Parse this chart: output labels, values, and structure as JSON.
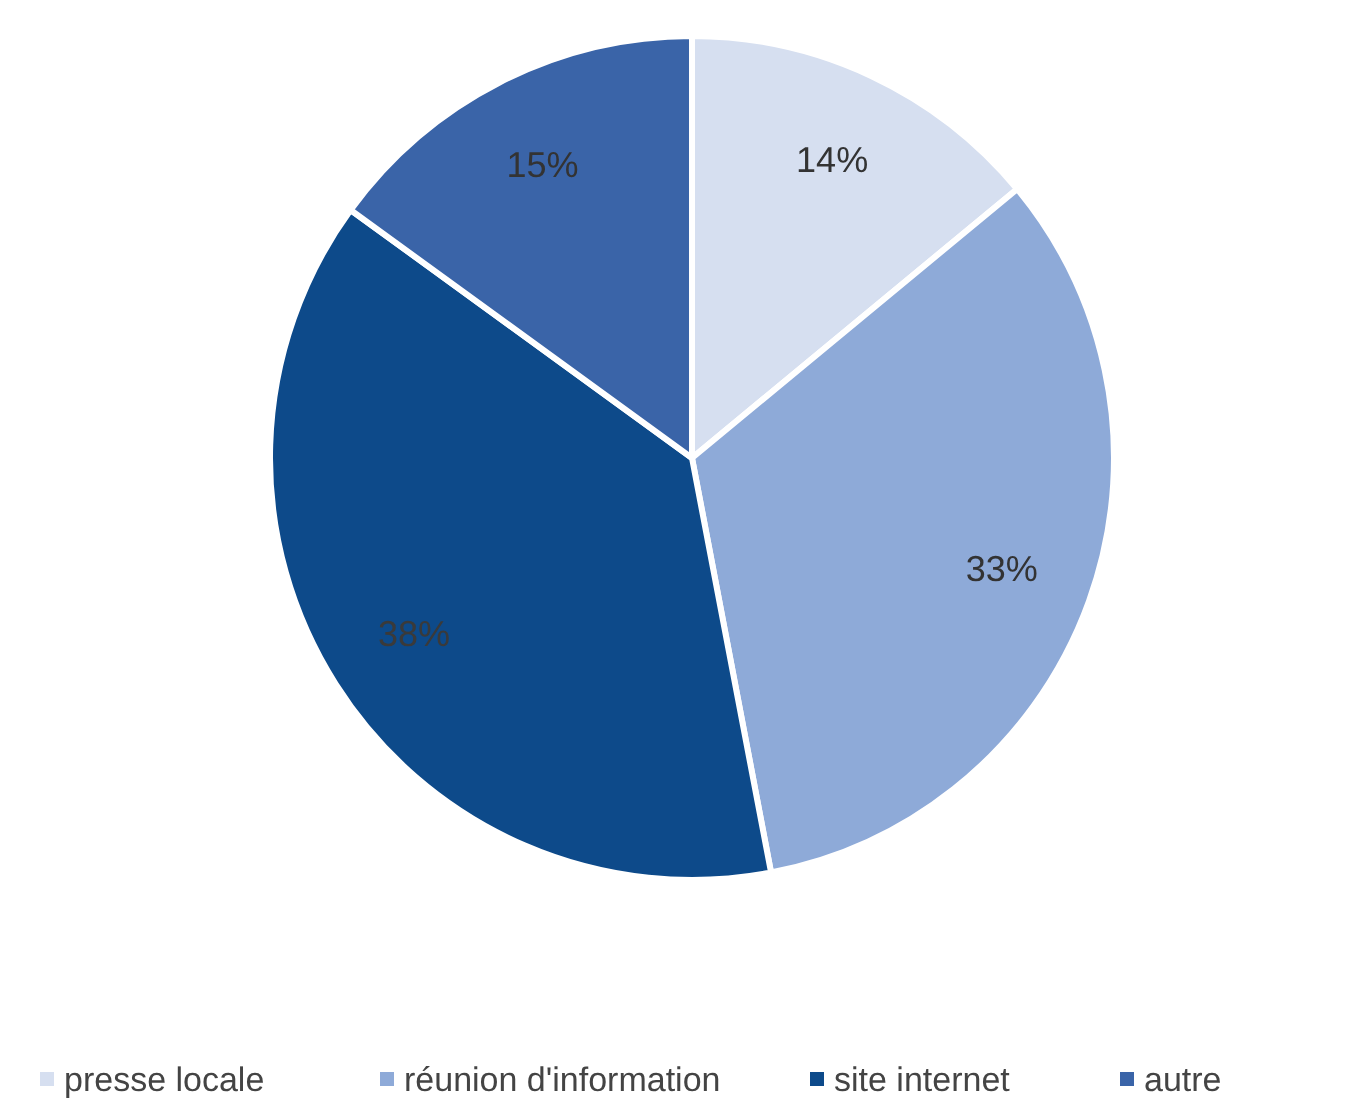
{
  "chart_data": {
    "type": "pie",
    "categories": [
      "presse locale",
      "réunion d'information",
      "site internet",
      "autre"
    ],
    "values": [
      14,
      33,
      38,
      15
    ],
    "colors": [
      "#d6dff0",
      "#8eaad8",
      "#0d4a8a",
      "#3a64a8"
    ],
    "value_labels": [
      "14%",
      "33%",
      "38%",
      "15%"
    ],
    "legend": "bottom"
  }
}
